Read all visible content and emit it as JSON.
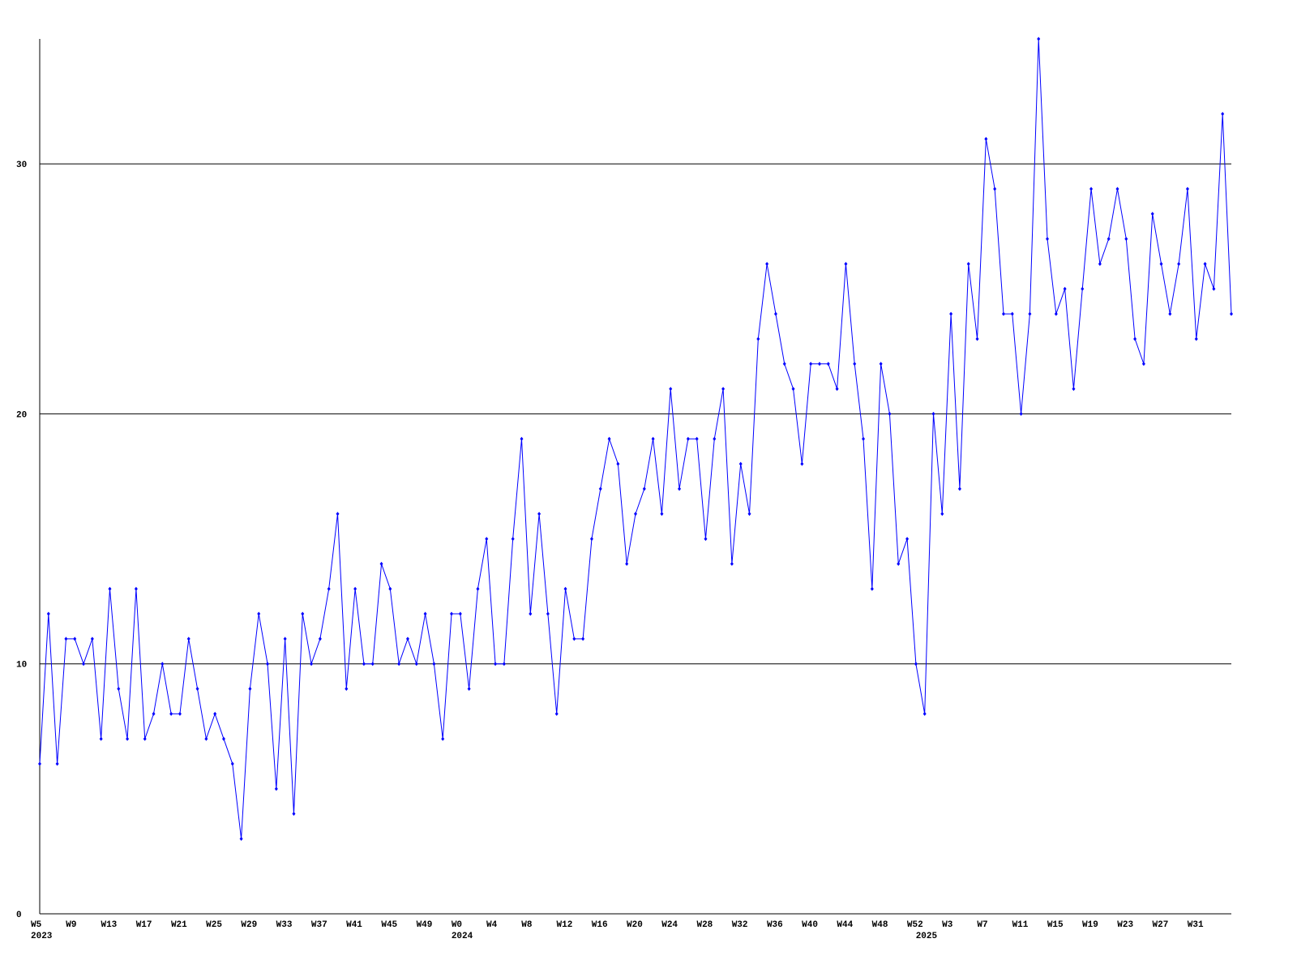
{
  "chart_data": {
    "type": "line",
    "categories": [
      "W5",
      null,
      null,
      null,
      "W9",
      null,
      null,
      null,
      "W13",
      null,
      null,
      null,
      "W17",
      null,
      null,
      null,
      "W21",
      null,
      null,
      null,
      "W25",
      null,
      null,
      null,
      "W29",
      null,
      null,
      null,
      "W33",
      null,
      null,
      null,
      "W37",
      null,
      null,
      null,
      "W41",
      null,
      null,
      null,
      "W45",
      null,
      null,
      null,
      "W49",
      null,
      null,
      null,
      "W0",
      null,
      null,
      null,
      "W4",
      null,
      null,
      null,
      "W8",
      null,
      null,
      null,
      "W12",
      null,
      null,
      null,
      "W16",
      null,
      null,
      null,
      "W20",
      null,
      null,
      null,
      "W24",
      null,
      null,
      null,
      "W28",
      null,
      null,
      null,
      "W32",
      null,
      null,
      null,
      "W36",
      null,
      null,
      null,
      "W40",
      null,
      null,
      null,
      "W44",
      null,
      null,
      null,
      "W48",
      null,
      null,
      null,
      "W52",
      null,
      null,
      null,
      "W3",
      null,
      null,
      null,
      "W7",
      null,
      null,
      null,
      "W11",
      null,
      null,
      null,
      "W15",
      null,
      null,
      null,
      "W19",
      null,
      null,
      null,
      "W23",
      null,
      null,
      null,
      "W27",
      null,
      null,
      null,
      "W31",
      null,
      null,
      null,
      null
    ],
    "years": [
      "2023",
      null,
      null,
      null,
      null,
      null,
      null,
      null,
      null,
      null,
      null,
      null,
      null,
      null,
      null,
      null,
      null,
      null,
      null,
      null,
      null,
      null,
      null,
      null,
      null,
      null,
      null,
      null,
      null,
      null,
      null,
      null,
      null,
      null,
      null,
      null,
      null,
      null,
      null,
      null,
      null,
      null,
      null,
      null,
      null,
      null,
      null,
      null,
      "2024",
      null,
      null,
      null,
      null,
      null,
      null,
      null,
      null,
      null,
      null,
      null,
      null,
      null,
      null,
      null,
      null,
      null,
      null,
      null,
      null,
      null,
      null,
      null,
      null,
      null,
      null,
      null,
      null,
      null,
      null,
      null,
      null,
      null,
      null,
      null,
      null,
      null,
      null,
      null,
      null,
      null,
      null,
      null,
      null,
      null,
      null,
      null,
      null,
      null,
      null,
      null,
      null,
      "2025",
      null,
      null,
      null,
      null,
      null,
      null,
      null,
      null,
      null,
      null,
      null,
      null,
      null,
      null,
      null,
      null,
      null,
      null,
      null,
      null,
      null,
      null,
      null,
      null,
      null,
      null,
      null,
      null,
      null,
      null,
      null,
      null,
      null,
      null,
      null
    ],
    "series": [
      {
        "color": "#0000ff",
        "values": [
          6,
          12,
          6,
          11,
          11,
          10,
          11,
          7,
          13,
          9,
          7,
          13,
          7,
          8,
          10,
          8,
          8,
          11,
          9,
          7,
          8,
          7,
          6,
          3,
          9,
          12,
          10,
          5,
          11,
          4,
          12,
          10,
          11,
          13,
          16,
          9,
          13,
          10,
          10,
          14,
          13,
          10,
          11,
          10,
          12,
          10,
          7,
          12,
          12,
          9,
          13,
          15,
          10,
          10,
          15,
          19,
          12,
          16,
          12,
          8,
          13,
          11,
          11,
          15,
          17,
          19,
          18,
          14,
          16,
          17,
          19,
          16,
          21,
          17,
          19,
          19,
          15,
          19,
          21,
          14,
          18,
          16,
          23,
          26,
          24,
          22,
          21,
          18,
          22,
          22,
          22,
          21,
          26,
          22,
          19,
          13,
          22,
          20,
          14,
          15,
          10,
          8,
          20,
          16,
          24,
          17,
          26,
          23,
          31,
          29,
          24,
          24,
          20,
          24,
          35,
          27,
          24,
          25,
          21,
          25,
          29,
          26,
          27,
          29,
          27,
          23,
          22,
          28,
          26,
          24,
          26,
          29,
          23,
          26,
          25,
          32,
          24
        ]
      }
    ],
    "ylim": [
      0,
      35
    ],
    "yticks": [
      0,
      10,
      20,
      30
    ],
    "grid": true
  }
}
